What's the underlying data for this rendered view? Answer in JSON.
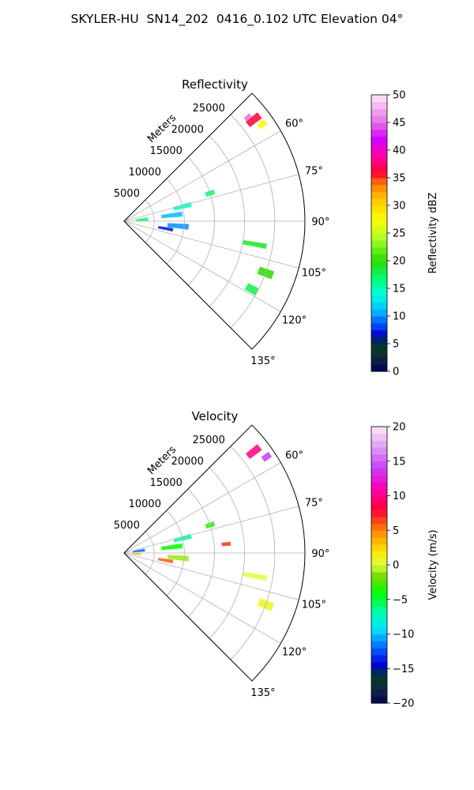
{
  "figure": {
    "title": "SKYLER-HU  SN14_202  0416_0.102 UTC Elevation 04°"
  },
  "chart_data": [
    {
      "type": "polar-sector",
      "title": "Reflectivity",
      "theta_range_deg": [
        45,
        135
      ],
      "theta_ticks": [
        "60°",
        "75°",
        "90°",
        "105°",
        "120°",
        "135°"
      ],
      "theta_tick_values": [
        60,
        75,
        90,
        105,
        120,
        135
      ],
      "r_label": "Meters",
      "r_ticks": [
        "5000",
        "10000",
        "15000",
        "20000",
        "25000"
      ],
      "r_tick_values": [
        5000,
        10000,
        15000,
        20000,
        25000
      ],
      "r_max": 30000,
      "colorbar": {
        "label": "Reflectivity dBZ",
        "min": 0,
        "max": 50,
        "ticks": [
          "0",
          "5",
          "10",
          "15",
          "20",
          "25",
          "30",
          "35",
          "40",
          "45",
          "50"
        ]
      },
      "echo_regions": [
        {
          "theta": 52,
          "r": 27300,
          "d_theta": 2.5,
          "d_r": 2500,
          "value": 36
        },
        {
          "theta": 50,
          "r": 26800,
          "d_theta": 1.5,
          "d_r": 1200,
          "value": 45
        },
        {
          "theta": 55,
          "r": 28000,
          "d_theta": 2.0,
          "d_r": 1500,
          "value": 28
        },
        {
          "theta": 72,
          "r": 15000,
          "d_theta": 3.0,
          "d_r": 1500,
          "value": 17
        },
        {
          "theta": 76,
          "r": 10000,
          "d_theta": 4.0,
          "d_r": 3000,
          "value": 15
        },
        {
          "theta": 83,
          "r": 8000,
          "d_theta": 5.0,
          "d_r": 3500,
          "value": 11
        },
        {
          "theta": 95,
          "r": 9000,
          "d_theta": 5.0,
          "d_r": 3500,
          "value": 10
        },
        {
          "theta": 100,
          "r": 7000,
          "d_theta": 4.0,
          "d_r": 2500,
          "value": 7
        },
        {
          "theta": 85,
          "r": 3000,
          "d_theta": 8.0,
          "d_r": 2000,
          "value": 17
        },
        {
          "theta": 100,
          "r": 22000,
          "d_theta": 2.0,
          "d_r": 4000,
          "value": 19
        },
        {
          "theta": 110,
          "r": 25000,
          "d_theta": 3.0,
          "d_r": 2500,
          "value": 20
        },
        {
          "theta": 118,
          "r": 24000,
          "d_theta": 3.0,
          "d_r": 2000,
          "value": 18
        }
      ]
    },
    {
      "type": "polar-sector",
      "title": "Velocity",
      "theta_range_deg": [
        45,
        135
      ],
      "theta_ticks": [
        "60°",
        "75°",
        "90°",
        "105°",
        "120°",
        "135°"
      ],
      "theta_tick_values": [
        60,
        75,
        90,
        105,
        120,
        135
      ],
      "r_label": "Meters",
      "r_ticks": [
        "5000",
        "10000",
        "15000",
        "20000",
        "25000"
      ],
      "r_tick_values": [
        5000,
        10000,
        15000,
        20000,
        25000
      ],
      "r_max": 30000,
      "colorbar": {
        "label": "Velocity (m/s)",
        "min": -20,
        "max": 20,
        "ticks": [
          "−20",
          "−15",
          "−10",
          "−5",
          "0",
          "5",
          "10",
          "15",
          "20"
        ]
      },
      "echo_regions": [
        {
          "theta": 52,
          "r": 27300,
          "d_theta": 2.5,
          "d_r": 2500,
          "value": 10
        },
        {
          "theta": 56,
          "r": 28500,
          "d_theta": 2.0,
          "d_r": 1500,
          "value": 14
        },
        {
          "theta": 72,
          "r": 15000,
          "d_theta": 3.0,
          "d_r": 1500,
          "value": -3
        },
        {
          "theta": 76,
          "r": 10000,
          "d_theta": 4.0,
          "d_r": 3000,
          "value": -7
        },
        {
          "theta": 83,
          "r": 8000,
          "d_theta": 5.0,
          "d_r": 3500,
          "value": -4
        },
        {
          "theta": 95,
          "r": 9000,
          "d_theta": 5.0,
          "d_r": 3500,
          "value": -1
        },
        {
          "theta": 100,
          "r": 7000,
          "d_theta": 4.0,
          "d_r": 2500,
          "value": 6
        },
        {
          "theta": 82,
          "r": 2500,
          "d_theta": 8.0,
          "d_r": 2000,
          "value": -12
        },
        {
          "theta": 95,
          "r": 2000,
          "d_theta": 8.0,
          "d_r": 1500,
          "value": 3
        },
        {
          "theta": 100,
          "r": 22000,
          "d_theta": 2.0,
          "d_r": 4000,
          "value": 0
        },
        {
          "theta": 110,
          "r": 25000,
          "d_theta": 3.0,
          "d_r": 2500,
          "value": 1
        },
        {
          "theta": 85,
          "r": 17000,
          "d_theta": 2.0,
          "d_r": 1500,
          "value": 7
        }
      ]
    }
  ]
}
